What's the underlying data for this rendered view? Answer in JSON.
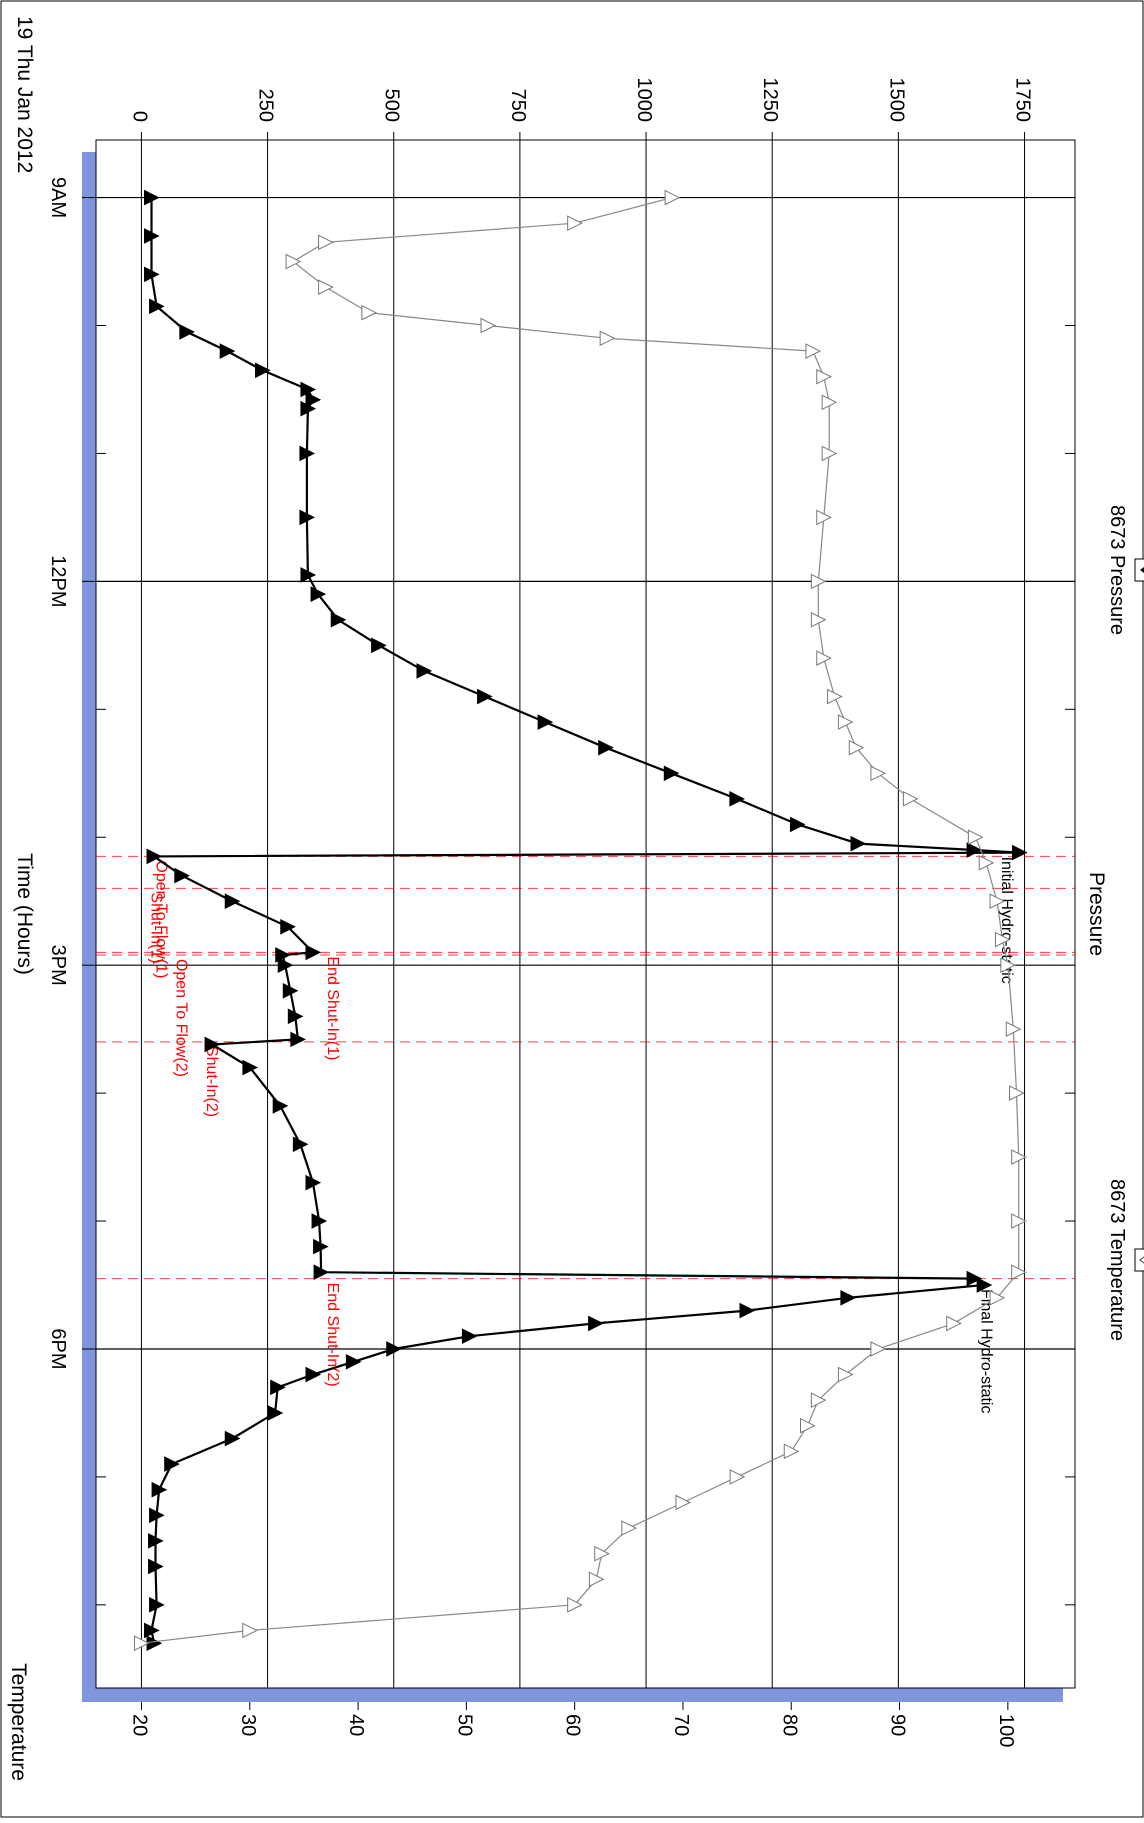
{
  "chart_data": {
    "type": "line",
    "orientation": "rotated-90-clockwise",
    "date_label": "19 Thu Jan 2012",
    "x_axis": {
      "label": "Time (Hours)",
      "unit": "hours since midnight",
      "range": [
        8.55,
        20.65
      ],
      "major_ticks": [
        {
          "value": 9,
          "label": "9AM"
        },
        {
          "value": 12,
          "label": "12PM"
        },
        {
          "value": 15,
          "label": "3PM"
        },
        {
          "value": 18,
          "label": "6PM"
        }
      ],
      "minor_ticks": [
        10,
        11,
        13,
        14,
        16,
        17,
        19,
        20
      ]
    },
    "y_axis_left": {
      "label": "Pressure",
      "range": [
        -90,
        1850
      ],
      "ticks": [
        0,
        250,
        500,
        750,
        1000,
        1250,
        1500,
        1750
      ],
      "grid": true
    },
    "y_axis_right": {
      "label": "Temperature",
      "range": [
        15.8,
        106.2
      ],
      "ticks": [
        20,
        30,
        40,
        50,
        60,
        70,
        80,
        90,
        100
      ]
    },
    "legend": {
      "position": "top",
      "items": [
        {
          "label": "8673 Pressure",
          "marker": "filled-triangle",
          "color": "#000000"
        },
        {
          "label": "8673 Temperature",
          "marker": "open-triangle",
          "color": "#888888"
        }
      ]
    },
    "series": [
      {
        "name": "8673 Pressure",
        "axis": "left",
        "color": "#000000",
        "marker": "filled-triangle",
        "x": [
          9.0,
          9.3,
          9.6,
          9.85,
          10.05,
          10.2,
          10.35,
          10.5,
          10.58,
          10.65,
          11.0,
          11.5,
          11.95,
          12.1,
          12.3,
          12.5,
          12.7,
          12.9,
          13.1,
          13.3,
          13.5,
          13.7,
          13.9,
          14.05,
          14.1,
          14.12,
          14.15,
          14.3,
          14.5,
          14.7,
          14.9,
          14.92,
          15.0,
          15.2,
          15.4,
          15.58,
          15.62,
          15.8,
          16.1,
          16.4,
          16.7,
          17.0,
          17.2,
          17.4,
          17.45,
          17.5,
          17.6,
          17.7,
          17.8,
          17.9,
          18.0,
          18.1,
          18.2,
          18.3,
          18.5,
          18.7,
          18.9,
          19.1,
          19.3,
          19.5,
          19.7,
          20.0,
          20.2,
          20.3
        ],
        "y": [
          20,
          20,
          20,
          30,
          90,
          170,
          240,
          330,
          340,
          330,
          328,
          328,
          330,
          350,
          390,
          470,
          560,
          680,
          800,
          920,
          1050,
          1180,
          1300,
          1420,
          1650,
          1740,
          25,
          80,
          180,
          290,
          340,
          280,
          285,
          295,
          305,
          310,
          140,
          215,
          275,
          315,
          340,
          352,
          355,
          356,
          1650,
          1670,
          1400,
          1200,
          900,
          650,
          500,
          420,
          340,
          270,
          265,
          180,
          60,
          35,
          30,
          28,
          28,
          30,
          20,
          25
        ]
      },
      {
        "name": "8673 Temperature",
        "axis": "right",
        "color": "#888888",
        "marker": "open-triangle",
        "x": [
          9.0,
          9.2,
          9.35,
          9.5,
          9.7,
          9.9,
          10.0,
          10.1,
          10.2,
          10.4,
          10.6,
          11.0,
          11.5,
          12.0,
          12.3,
          12.6,
          12.9,
          13.1,
          13.3,
          13.5,
          13.7,
          14.0,
          14.2,
          14.5,
          14.8,
          15.0,
          15.5,
          16.0,
          16.5,
          17.0,
          17.4,
          17.6,
          17.8,
          18.0,
          18.2,
          18.4,
          18.6,
          18.8,
          19.0,
          19.2,
          19.4,
          19.6,
          19.8,
          20.0,
          20.2,
          20.3
        ],
        "y": [
          69,
          60,
          37,
          34,
          37,
          41,
          52,
          63,
          82,
          83,
          83.5,
          83.5,
          83,
          82.5,
          82.5,
          83,
          84,
          85,
          86,
          88,
          91,
          97,
          98,
          99,
          99.5,
          100,
          100.5,
          100.8,
          101,
          101,
          101,
          99,
          95,
          88,
          85,
          82.5,
          81.5,
          80,
          75,
          70,
          65,
          62.5,
          62,
          60,
          30,
          20
        ]
      }
    ],
    "events": [
      {
        "x": 14.12,
        "label": "Initial Hydro-static",
        "label_pressure": 1705,
        "color": "#000000"
      },
      {
        "x": 14.15,
        "label": "Open To Flow(1)",
        "label_pressure": 30,
        "color": "#ff0000"
      },
      {
        "x": 14.4,
        "label": "Shut-In(1)",
        "label_pressure": 20,
        "color": "#ff0000"
      },
      {
        "x": 14.9,
        "label": "End Shut-In(1)",
        "label_pressure": 370,
        "color": "#ff0000"
      },
      {
        "x": 14.92,
        "label": "Open To Flow(2)",
        "label_pressure": 70,
        "color": "#ff0000"
      },
      {
        "x": 15.6,
        "label": "Shut-In(2)",
        "label_pressure": 130,
        "color": "#ff0000"
      },
      {
        "x": 17.45,
        "label": "End Shut-In(2)",
        "label_pressure": 370,
        "color": "#ff0000"
      },
      {
        "x": 17.5,
        "label": "Final Hydro-static",
        "label_pressure": 1665,
        "color": "#000000"
      }
    ]
  }
}
